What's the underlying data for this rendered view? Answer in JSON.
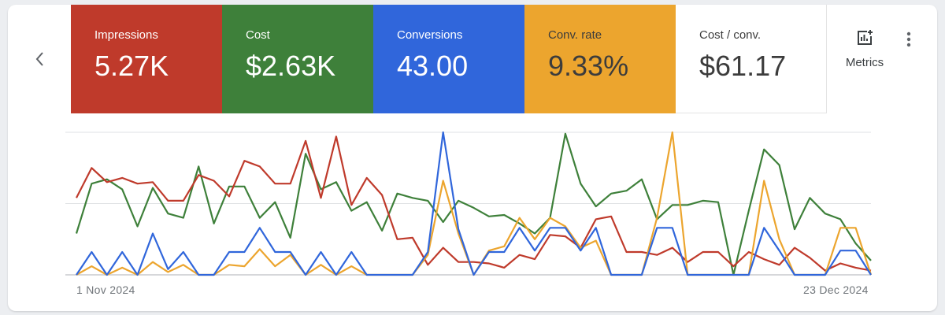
{
  "nav": {
    "prev_icon": "chevron-left-icon"
  },
  "tiles": [
    {
      "label": "Impressions",
      "value": "5.27K",
      "color": "#bf3a2b"
    },
    {
      "label": "Cost",
      "value": "$2.63K",
      "color": "#3e803a"
    },
    {
      "label": "Conversions",
      "value": "43.00",
      "color": "#3066db"
    },
    {
      "label": "Conv. rate",
      "value": "9.33%",
      "color": "#eca52e"
    },
    {
      "label": "Cost / conv.",
      "value": "$61.17",
      "color": "#ffffff"
    }
  ],
  "metrics_button": {
    "label": "Metrics",
    "icon": "add-chart-icon"
  },
  "more_icon": "more-vert-icon",
  "chart_data": {
    "type": "line",
    "x_start_label": "1 Nov 2024",
    "x_end_label": "23 Dec 2024",
    "ylim": [
      0,
      100
    ],
    "y_note": "each series normalized to its own scale (0-100)",
    "grid": true,
    "series": [
      {
        "name": "Impressions",
        "color": "#bf3a2b",
        "values": [
          54,
          75,
          65,
          68,
          64,
          65,
          52,
          52,
          70,
          66,
          55,
          80,
          76,
          64,
          64,
          94,
          54,
          97,
          49,
          68,
          56,
          25,
          26,
          7,
          19,
          9,
          9,
          8,
          5,
          14,
          11,
          28,
          27,
          19,
          39,
          41,
          16,
          16,
          14,
          19,
          9,
          16,
          16,
          6,
          16,
          11,
          7,
          19,
          12,
          3,
          8,
          5,
          3
        ]
      },
      {
        "name": "Cost",
        "color": "#3e803a",
        "values": [
          29,
          64,
          67,
          60,
          34,
          61,
          43,
          40,
          76,
          36,
          62,
          62,
          40,
          51,
          26,
          85,
          60,
          65,
          45,
          51,
          31,
          57,
          54,
          52,
          37,
          52,
          47,
          41,
          42,
          36,
          29,
          40,
          99,
          64,
          48,
          57,
          59,
          67,
          39,
          49,
          49,
          52,
          51,
          0,
          45,
          88,
          77,
          32,
          54,
          43,
          39,
          22,
          10
        ]
      },
      {
        "name": "Conversions",
        "color": "#3066db",
        "values": [
          0,
          16,
          0,
          16,
          0,
          29,
          4,
          16,
          0,
          0,
          16,
          16,
          33,
          16,
          16,
          0,
          16,
          0,
          16,
          0,
          0,
          0,
          0,
          16,
          100,
          32,
          0,
          16,
          16,
          33,
          17,
          33,
          33,
          17,
          33,
          0,
          0,
          0,
          33,
          33,
          0,
          0,
          0,
          0,
          0,
          33,
          17,
          0,
          0,
          0,
          17,
          17,
          0
        ]
      },
      {
        "name": "Conv. rate",
        "color": "#eca52e",
        "values": [
          0,
          6,
          0,
          5,
          0,
          9,
          2,
          7,
          0,
          0,
          7,
          6,
          18,
          6,
          14,
          0,
          7,
          0,
          6,
          0,
          0,
          0,
          0,
          14,
          66,
          29,
          0,
          17,
          20,
          40,
          25,
          40,
          34,
          19,
          24,
          0,
          0,
          0,
          40,
          100,
          0,
          0,
          0,
          0,
          0,
          66,
          25,
          0,
          0,
          0,
          33,
          33,
          0
        ]
      }
    ]
  }
}
